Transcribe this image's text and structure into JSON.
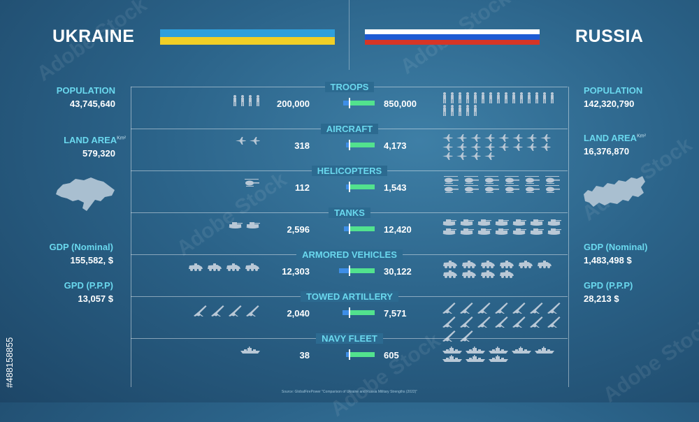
{
  "ukraine": {
    "name": "UKRAINE",
    "flag_colors": [
      "#2f9fdc",
      "#f1cf26"
    ],
    "stats": [
      {
        "label": "POPULATION",
        "value": "43,745,640"
      },
      {
        "label": "LAND AREA",
        "unit": "Km²",
        "value": "579,320"
      },
      {
        "label": "GDP (Nominal)",
        "value": "155,582, $"
      },
      {
        "label": "GPD (P.P.P)",
        "value": "13,057 $"
      }
    ]
  },
  "russia": {
    "name": "RUSSIA",
    "flag_colors": [
      "#ffffff",
      "#1d5bd4",
      "#d63526"
    ],
    "stats": [
      {
        "label": "POPULATION",
        "value": "142,320,790"
      },
      {
        "label": "LAND AREA",
        "unit": "Km²",
        "value": "16,376,870"
      },
      {
        "label": "GDP (Nominal)",
        "value": "1,483,498 $"
      },
      {
        "label": "GPD (P.P.P)",
        "value": "28,213 $"
      }
    ]
  },
  "colors": {
    "ukraine_bar": "#3e8ee6",
    "russia_bar": "#52e28e",
    "label": "#6ad8ee",
    "icon": "#b9c8d6"
  },
  "chart_data": {
    "type": "bar",
    "categories": [
      "TROOPS",
      "AIRCRAFT",
      "HELICOPTERS",
      "TANKS",
      "ARMORED VEHICLES",
      "TOWED ARTILLERY",
      "NAVY FLEET"
    ],
    "series": [
      {
        "name": "UKRAINE",
        "values": [
          200000,
          318,
          112,
          2596,
          12303,
          2040,
          38
        ],
        "labels": [
          "200,000",
          "318",
          "112",
          "2,596",
          "12,303",
          "2,040",
          "38"
        ]
      },
      {
        "name": "RUSSIA",
        "values": [
          850000,
          4173,
          1543,
          12420,
          30122,
          7571,
          605
        ],
        "labels": [
          "850,000",
          "4,173",
          "1,543",
          "12,420",
          "30,122",
          "7,571",
          "605"
        ]
      }
    ],
    "icon_counts": {
      "ukraine": [
        4,
        2,
        1,
        2,
        4,
        4,
        1
      ],
      "russia": [
        20,
        20,
        12,
        14,
        10,
        16,
        8
      ]
    },
    "icon_types": [
      "soldier-icon",
      "jet-icon",
      "helicopter-icon",
      "tank-icon",
      "armored-vehicle-icon",
      "artillery-icon",
      "warship-icon"
    ]
  },
  "source": "Source: GlobalFirePower \"Comparison of Ukraine and Russia Military Strengths (2022)\"",
  "watermark": {
    "brand": "Adobe Stock",
    "id": "#488158855"
  }
}
